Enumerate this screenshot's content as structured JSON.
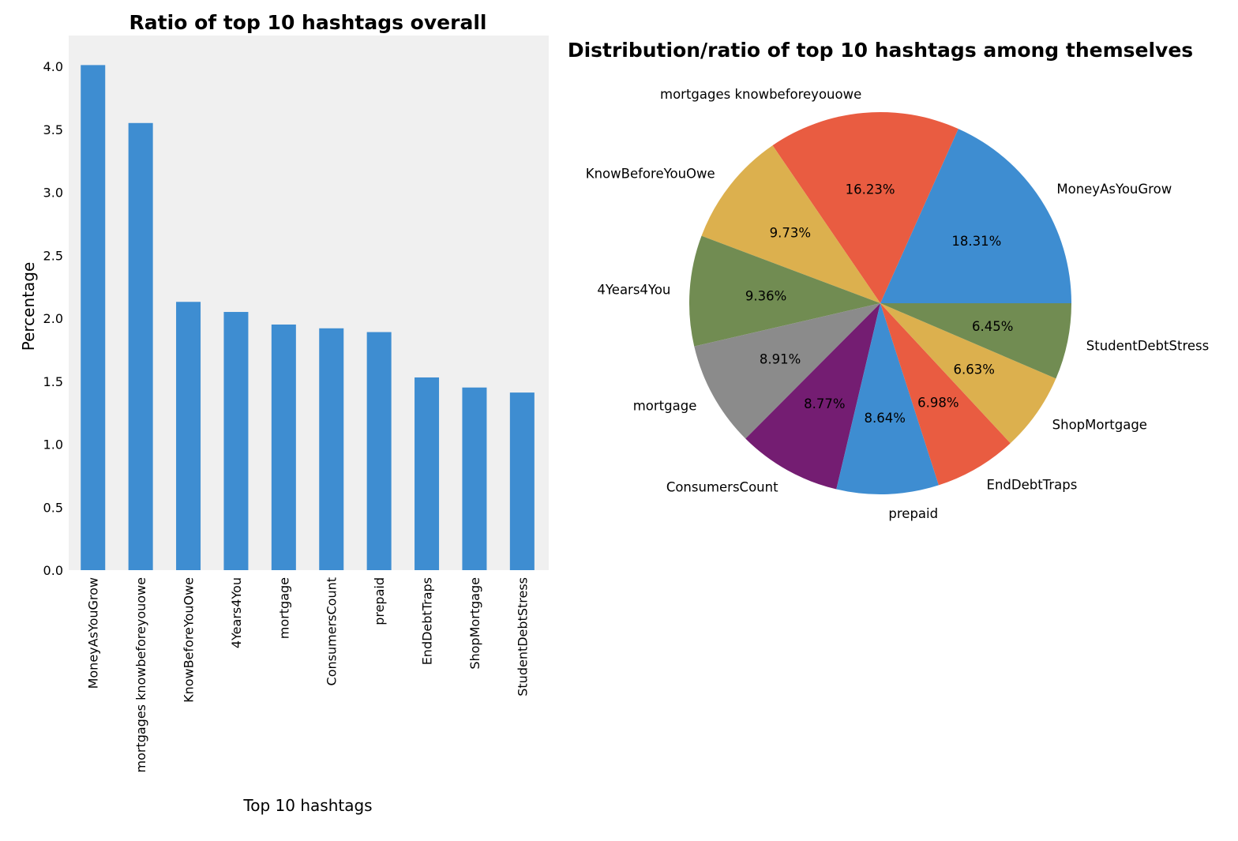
{
  "chart_data": [
    {
      "type": "bar",
      "title": "Ratio of top 10 hashtags overall",
      "xlabel": "Top 10 hashtags",
      "ylabel": "Percentage",
      "ylim": [
        0,
        4.2
      ],
      "yticks": [
        "0.0",
        "0.5",
        "1.0",
        "1.5",
        "2.0",
        "2.5",
        "3.0",
        "3.5",
        "4.0"
      ],
      "grid": false,
      "categories": [
        "MoneyAsYouGrow",
        "mortgages knowbeforeyouowe",
        "KnowBeforeYouOwe",
        "4Years4You",
        "mortgage",
        "ConsumersCount",
        "prepaid",
        "EndDebtTraps",
        "ShopMortgage",
        "StudentDebtStress"
      ],
      "values": [
        4.01,
        3.55,
        2.13,
        2.05,
        1.95,
        1.92,
        1.89,
        1.53,
        1.45,
        1.41
      ],
      "color": "#3e8dd1",
      "background": "#f0f0f0"
    },
    {
      "type": "pie",
      "title": "Distribution/ratio of top 10 hashtags among themselves",
      "labels": [
        "MoneyAsYouGrow",
        "mortgages knowbeforeyouowe",
        "KnowBeforeYouOwe",
        "4Years4You",
        "mortgage",
        "ConsumersCount",
        "prepaid",
        "EndDebtTraps",
        "ShopMortgage",
        "StudentDebtStress"
      ],
      "values": [
        18.31,
        16.23,
        9.73,
        9.36,
        8.91,
        8.77,
        8.64,
        6.98,
        6.63,
        6.45
      ],
      "pct_labels": [
        "18.31%",
        "16.23%",
        "9.73%",
        "9.36%",
        "8.91%",
        "8.77%",
        "8.64%",
        "6.98%",
        "6.63%",
        "6.45%"
      ],
      "colors": [
        "#3e8dd1",
        "#e95c41",
        "#dcb04e",
        "#718c52",
        "#8b8b8b",
        "#741d72",
        "#3e8dd1",
        "#e95c41",
        "#dcb04e",
        "#718c52"
      ]
    }
  ]
}
